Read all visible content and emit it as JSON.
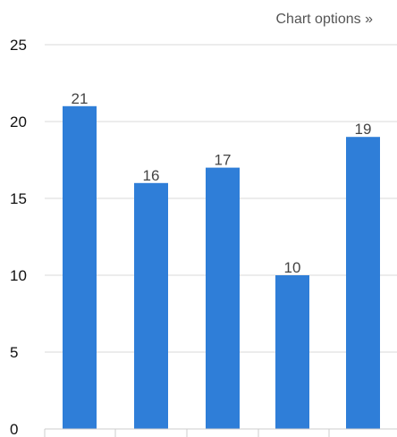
{
  "header": {
    "chart_options_label": "Chart options »"
  },
  "colors": {
    "bar": "#2f7ed8",
    "grid": "#d9d9d9",
    "axis_text": "#111111",
    "data_label": "#444444"
  },
  "chart_data": {
    "type": "bar",
    "categories": [
      "",
      "",
      "",
      "",
      ""
    ],
    "values": [
      21,
      16,
      17,
      10,
      19
    ],
    "ylim": [
      0,
      25
    ],
    "yticks": [
      0,
      5,
      10,
      15,
      20,
      25
    ],
    "grid": true,
    "data_labels": true,
    "legend": "none"
  }
}
